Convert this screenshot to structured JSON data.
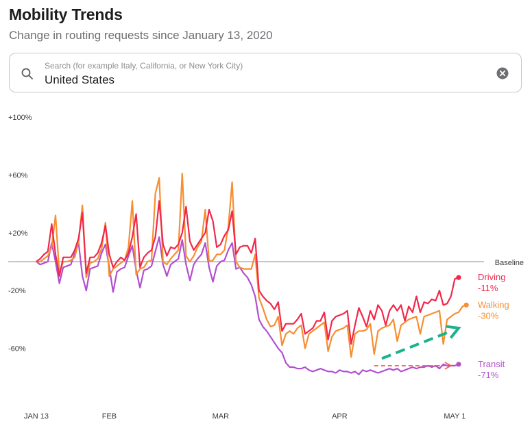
{
  "header": {
    "title": "Mobility Trends",
    "subtitle": "Change in routing requests since January 13, 2020"
  },
  "search": {
    "placeholder": "Search (for example Italy, California, or New York City)",
    "value": "United States",
    "search_icon": "search-icon",
    "clear_icon": "clear-icon"
  },
  "colors": {
    "driving": "#f2274b",
    "walking": "#f78e30",
    "transit": "#b14fd0",
    "baseline": "#8e8e93",
    "arrow_green": "#1bb28c",
    "arrow_red": "#f5574a"
  },
  "chart_data": {
    "type": "line",
    "ylim": [
      -100,
      100
    ],
    "yticks": [
      "+100%",
      "+60%",
      "+20%",
      "-20%",
      "-60%"
    ],
    "ytick_values": [
      100,
      60,
      20,
      -20,
      -60
    ],
    "x_ticks": [
      {
        "label": "JAN 13",
        "day": 0
      },
      {
        "label": "FEB",
        "day": 19
      },
      {
        "label": "MAR",
        "day": 48
      },
      {
        "label": "APR",
        "day": 79
      },
      {
        "label": "MAY 1",
        "day": 109
      }
    ],
    "baseline_label": "Baseline",
    "series": [
      {
        "name": "Driving",
        "end_label": "-11%",
        "color": "#f2274b",
        "values": [
          0,
          2,
          5,
          7,
          26,
          5,
          -10,
          3,
          3,
          3,
          8,
          16,
          34,
          -8,
          3,
          3,
          6,
          13,
          25,
          5,
          -4,
          0,
          3,
          1,
          6,
          17,
          33,
          -4,
          3,
          6,
          8,
          17,
          42,
          12,
          4,
          10,
          9,
          12,
          20,
          38,
          14,
          8,
          12,
          16,
          20,
          36,
          28,
          10,
          12,
          18,
          22,
          35,
          5,
          10,
          11,
          11,
          6,
          16,
          -20,
          -24,
          -27,
          -29,
          -33,
          -28,
          -48,
          -43,
          -43,
          -43,
          -40,
          -36,
          -50,
          -48,
          -46,
          -41,
          -41,
          -35,
          -54,
          -41,
          -38,
          -37,
          -36,
          -34,
          -57,
          -44,
          -32,
          -38,
          -45,
          -34,
          -40,
          -30,
          -34,
          -44,
          -34,
          -30,
          -34,
          -30,
          -41,
          -31,
          -35,
          -24,
          -35,
          -28,
          -29,
          -26,
          -27,
          -20,
          -30,
          -29,
          -24,
          -12,
          -11
        ]
      },
      {
        "name": "Walking",
        "end_label": "-30%",
        "color": "#f78e30",
        "values": [
          0,
          0,
          2,
          4,
          10,
          32,
          -8,
          0,
          0,
          1,
          3,
          14,
          39,
          -11,
          -1,
          0,
          2,
          9,
          27,
          -10,
          -5,
          -3,
          -1,
          1,
          10,
          42,
          -9,
          -5,
          -4,
          0,
          1,
          47,
          58,
          0,
          -2,
          2,
          5,
          8,
          61,
          4,
          0,
          4,
          10,
          14,
          36,
          0,
          1,
          5,
          5,
          8,
          24,
          55,
          0,
          -4,
          -5,
          -5,
          -5,
          5,
          -25,
          -32,
          -40,
          -45,
          -44,
          -38,
          -58,
          -50,
          -48,
          -50,
          -46,
          -44,
          -60,
          -50,
          -48,
          -46,
          -44,
          -42,
          -62,
          -52,
          -48,
          -47,
          -46,
          -44,
          -66,
          -50,
          -48,
          -48,
          -47,
          -43,
          -64,
          -48,
          -46,
          -45,
          -44,
          -40,
          -55,
          -44,
          -42,
          -40,
          -39,
          -38,
          -50,
          -38,
          -37,
          -36,
          -35,
          -34,
          -57,
          -40,
          -38,
          -36,
          -35,
          -31,
          -30
        ]
      },
      {
        "name": "Transit",
        "end_label": "-71%",
        "color": "#b14fd0",
        "values": [
          0,
          -2,
          -1,
          0,
          13,
          0,
          -15,
          -4,
          -3,
          -2,
          6,
          13,
          -10,
          -20,
          -5,
          -4,
          -3,
          6,
          12,
          -4,
          -21,
          -7,
          -5,
          -4,
          4,
          11,
          -6,
          -18,
          -6,
          -5,
          -3,
          7,
          17,
          -2,
          -10,
          -2,
          0,
          2,
          15,
          -2,
          -13,
          -2,
          2,
          5,
          13,
          -4,
          -14,
          -3,
          0,
          1,
          8,
          13,
          -5,
          -4,
          -8,
          -11,
          -16,
          -24,
          -40,
          -45,
          -48,
          -52,
          -56,
          -60,
          -63,
          -70,
          -73,
          -73,
          -74,
          -74,
          -73,
          -75,
          -76,
          -75,
          -74,
          -75,
          -76,
          -76,
          -77,
          -75,
          -76,
          -76,
          -77,
          -76,
          -78,
          -75,
          -76,
          -75,
          -76,
          -77,
          -76,
          -75,
          -74,
          -75,
          -74,
          -76,
          -75,
          -74,
          -73,
          -74,
          -73,
          -73,
          -72,
          -73,
          -72,
          -74,
          -71,
          -72,
          -72,
          -72,
          -71
        ]
      }
    ],
    "annotations": [
      {
        "type": "arrow",
        "color": "#1bb28c",
        "from": [
          90,
          -67
        ],
        "to": [
          110,
          -46
        ]
      },
      {
        "type": "arrow",
        "color": "#f5574a",
        "from": [
          88,
          -72
        ],
        "to": [
          108,
          -72
        ]
      }
    ]
  }
}
